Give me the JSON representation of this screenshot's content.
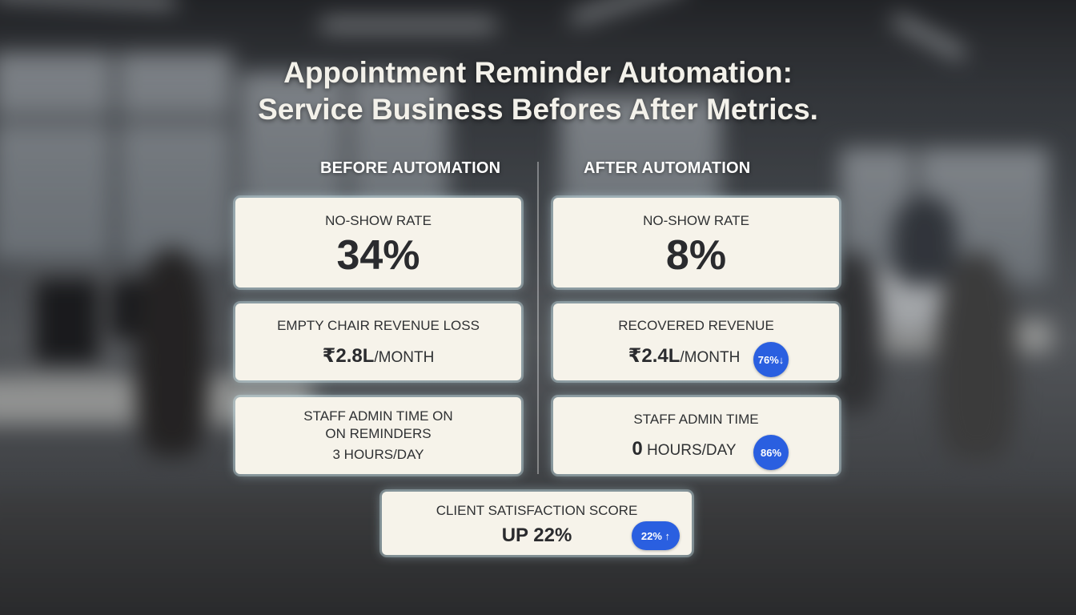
{
  "title": {
    "line1": "Appointment Reminder Automation:",
    "line2": "Service Business Befores After Metrics."
  },
  "columns": {
    "before": "BEFORE AUTOMATION",
    "after": "AFTER AUTOMATION"
  },
  "before": {
    "no_show": {
      "label": "NO-SHOW RATE",
      "value": "34%"
    },
    "revenue_loss": {
      "label": "EMPTY CHAIR REVENUE LOSS",
      "value": "₹2.8L",
      "unit": "/MONTH"
    },
    "admin_time": {
      "label_line1": "STAFF ADMIN TIME ON",
      "label_line2": "ON REMINDERS",
      "value": "3 HOURS/DAY"
    }
  },
  "after": {
    "no_show": {
      "label": "NO-SHOW RATE",
      "value": "8%"
    },
    "recovered": {
      "label": "RECOVERED REVENUE",
      "value": "₹2.4L",
      "unit": "/MONTH",
      "badge": "76%↓"
    },
    "admin_time": {
      "label": "STAFF ADMIN TIME",
      "value": "0",
      "unit": " HOURS/DAY",
      "badge": "86%"
    }
  },
  "satisfaction": {
    "label": "CLIENT SATISFACTION SCORE",
    "value": "UP 22%",
    "badge": "22% ↑"
  },
  "colors": {
    "card_bg": "#f6f3ea",
    "badge": "#2a5fe0",
    "title_text": "#f3f1ea"
  }
}
